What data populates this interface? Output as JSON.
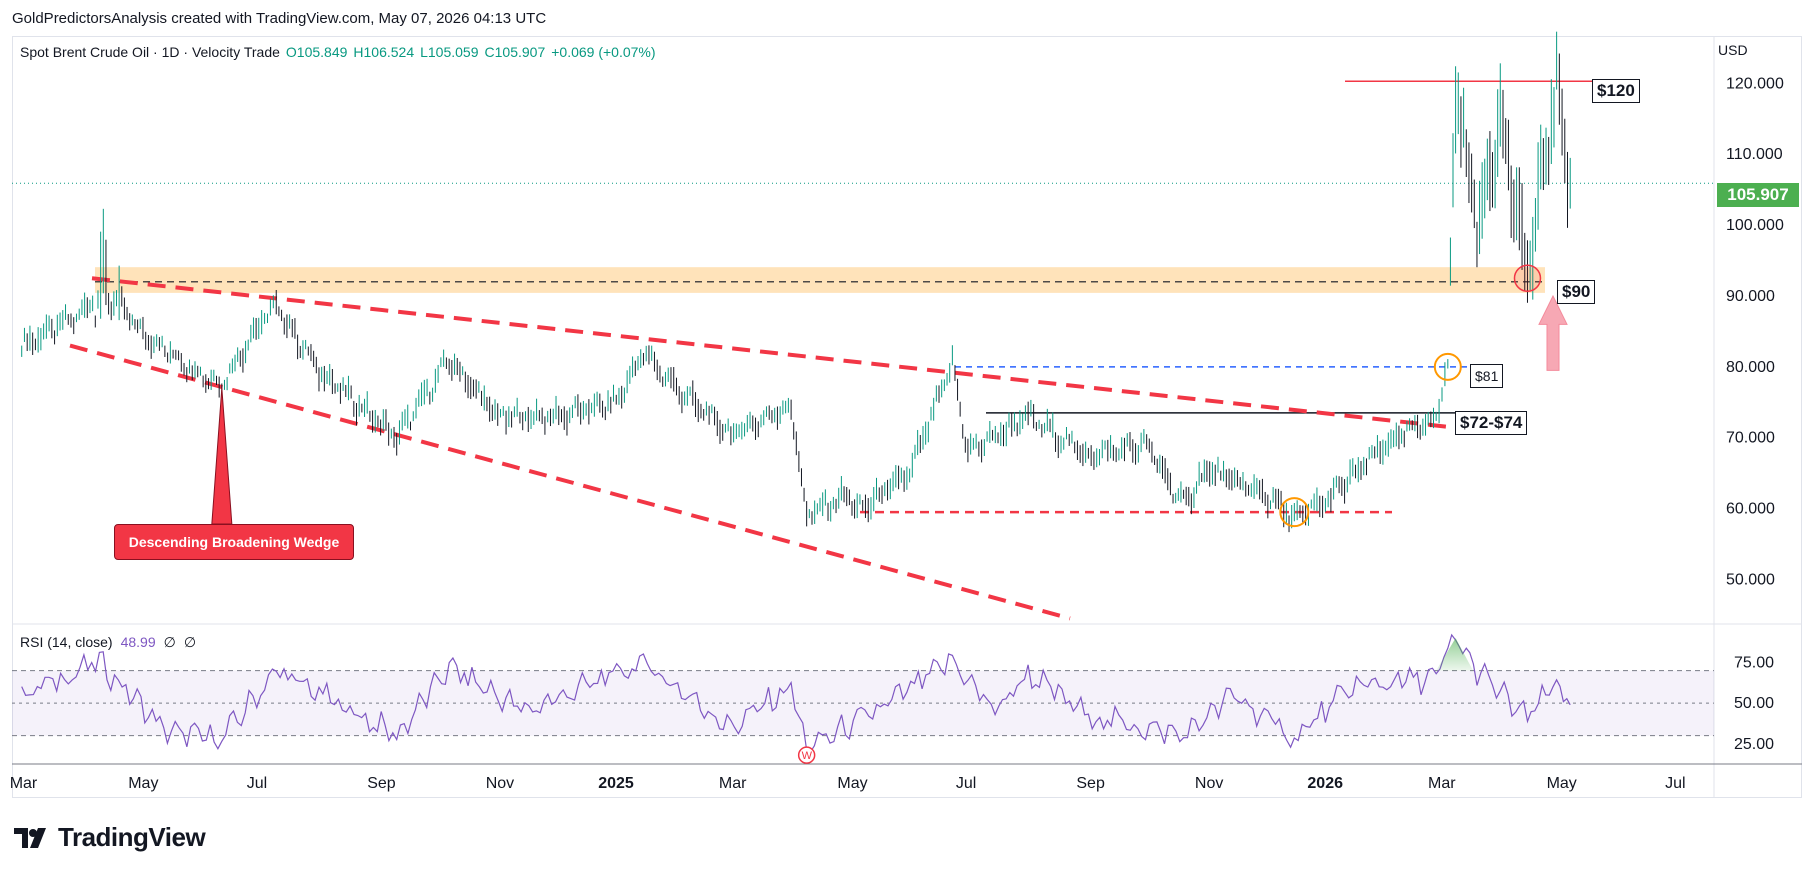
{
  "attribution": "GoldPredictorsAnalysis created with TradingView.com, May 07, 2026 04:13 UTC",
  "legend": {
    "symbol": "Spot Brent Crude Oil · 1D · Velocity Trade",
    "open": "O105.849",
    "high": "H106.524",
    "low": "L105.059",
    "close": "C105.907",
    "change": "+0.069 (+0.07%)"
  },
  "currency": "USD",
  "last_price": "105.907",
  "rsi_legend": {
    "label": "RSI (14, close)",
    "value": "48.99",
    "n1": "∅",
    "n2": "∅"
  },
  "annotations": {
    "resistance_120": "$120",
    "support_90": "$90",
    "level_81": "$81",
    "zone_72_74": "$72-$74",
    "wedge": "Descending Broadening Wedge",
    "rsi_marker": "W"
  },
  "brand": "TradingView",
  "colors": {
    "up": "#089981",
    "down": "#131722",
    "red": "#f23645",
    "blue": "#2962ff",
    "rsi": "#7e57c2",
    "zone": "#ffe0b2",
    "orange": "#ff9800",
    "green": "#4caf50"
  },
  "chart_data": {
    "type": "line",
    "title": "Spot Brent Crude Oil · 1D · Velocity Trade",
    "x_ticks": [
      "Mar",
      "May",
      "Jul",
      "Sep",
      "Nov",
      "2025",
      "Mar",
      "May",
      "Jul",
      "Sep",
      "Nov",
      "2026",
      "Mar",
      "May",
      "Jul"
    ],
    "y_ticks": [
      "120.000",
      "110.000",
      "100.000",
      "90.000",
      "80.000",
      "70.000",
      "60.000",
      "50.000"
    ],
    "ylim": [
      44,
      124
    ],
    "x_range": [
      "2024-03",
      "2026-07"
    ],
    "series": [
      {
        "name": "Spot Brent Crude Oil",
        "points": [
          [
            "2024-03-01",
            83.0
          ],
          [
            "2024-04-01",
            87.5
          ],
          [
            "2024-04-12",
            92.0
          ],
          [
            "2024-05-01",
            85.0
          ],
          [
            "2024-06-01",
            79.0
          ],
          [
            "2024-06-12",
            77.5
          ],
          [
            "2024-07-01",
            86.0
          ],
          [
            "2024-07-10",
            88.5
          ],
          [
            "2024-08-01",
            79.5
          ],
          [
            "2024-09-10",
            70.0
          ],
          [
            "2024-10-07",
            81.0
          ],
          [
            "2024-11-01",
            73.0
          ],
          [
            "2024-12-01",
            73.0
          ],
          [
            "2025-01-01",
            75.0
          ],
          [
            "2025-01-15",
            82.0
          ],
          [
            "2025-02-01",
            77.0
          ],
          [
            "2025-03-01",
            70.5
          ],
          [
            "2025-04-01",
            74.5
          ],
          [
            "2025-04-09",
            59.0
          ],
          [
            "2025-05-01",
            62.0
          ],
          [
            "2025-05-05",
            59.5
          ],
          [
            "2025-06-01",
            65.0
          ],
          [
            "2025-06-23",
            80.5
          ],
          [
            "2025-07-01",
            68.0
          ],
          [
            "2025-08-01",
            73.0
          ],
          [
            "2025-09-01",
            67.5
          ],
          [
            "2025-10-01",
            69.0
          ],
          [
            "2025-10-20",
            60.5
          ],
          [
            "2025-11-01",
            65.5
          ],
          [
            "2025-12-01",
            62.0
          ],
          [
            "2025-12-16",
            58.5
          ],
          [
            "2026-01-01",
            61.0
          ],
          [
            "2026-02-01",
            69.0
          ],
          [
            "2026-02-27",
            73.0
          ],
          [
            "2026-03-05",
            80.0
          ],
          [
            "2026-03-09",
            120.0
          ],
          [
            "2026-03-20",
            100.0
          ],
          [
            "2026-04-01",
            115.0
          ],
          [
            "2026-04-15",
            93.0
          ],
          [
            "2026-04-30",
            120.0
          ],
          [
            "2026-05-07",
            105.907
          ]
        ]
      },
      {
        "name": "RSI (14, close)",
        "rsi_ticks": [
          "75.00",
          "50.00",
          "25.00"
        ],
        "rsi_bands": [
          70,
          50,
          30
        ],
        "points": [
          [
            "2024-03-01",
            55
          ],
          [
            "2024-04-10",
            75
          ],
          [
            "2024-05-15",
            32
          ],
          [
            "2024-06-12",
            28
          ],
          [
            "2024-07-10",
            70
          ],
          [
            "2024-09-10",
            30
          ],
          [
            "2024-10-07",
            72
          ],
          [
            "2024-11-15",
            45
          ],
          [
            "2025-01-15",
            75
          ],
          [
            "2025-03-01",
            35
          ],
          [
            "2025-04-01",
            60
          ],
          [
            "2025-04-09",
            22
          ],
          [
            "2025-05-15",
            45
          ],
          [
            "2025-06-23",
            76
          ],
          [
            "2025-07-15",
            45
          ],
          [
            "2025-08-01",
            68
          ],
          [
            "2025-09-01",
            42
          ],
          [
            "2025-10-20",
            30
          ],
          [
            "2025-11-15",
            55
          ],
          [
            "2025-12-16",
            28
          ],
          [
            "2026-01-15",
            60
          ],
          [
            "2026-02-27",
            66
          ],
          [
            "2026-03-09",
            90
          ],
          [
            "2026-03-20",
            70
          ],
          [
            "2026-04-15",
            40
          ],
          [
            "2026-04-30",
            64
          ],
          [
            "2026-05-07",
            48.99
          ]
        ]
      }
    ],
    "levels": {
      "resistance": 120,
      "support_zone": [
        91,
        93.5
      ],
      "dashed_line": 92,
      "blue_dashed": 80,
      "black_line": 73.5,
      "red_dashed_floor": 59.5
    },
    "grid": false,
    "legend": "top-left"
  }
}
